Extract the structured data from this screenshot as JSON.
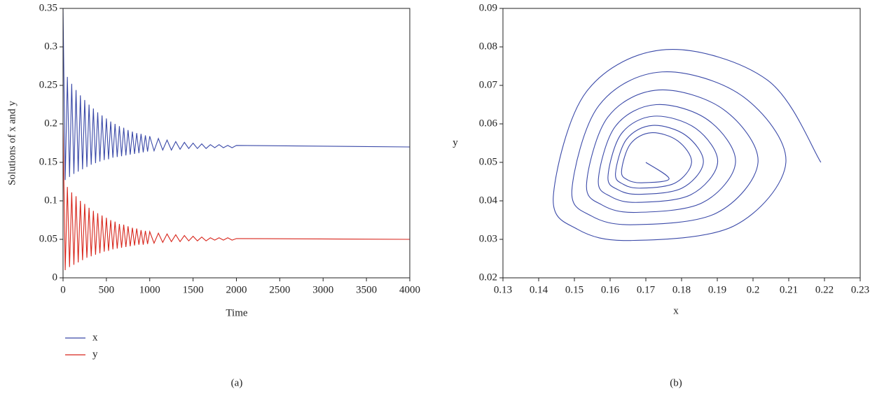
{
  "chart_data": [
    {
      "type": "line",
      "panel_label": "(a)",
      "xlabel": "Time",
      "ylabel": "Solutions of x and y",
      "legend": "below",
      "xlim": [
        0,
        4000
      ],
      "xticks": [
        0,
        500,
        1000,
        1500,
        2000,
        2500,
        3000,
        3500,
        4000
      ],
      "ylim": [
        0,
        0.35
      ],
      "yticks": [
        0,
        0.05,
        0.1,
        0.15,
        0.2,
        0.25,
        0.3,
        0.35
      ],
      "x": [
        0,
        25,
        50,
        75,
        100,
        125,
        150,
        175,
        200,
        225,
        250,
        275,
        300,
        325,
        350,
        375,
        400,
        425,
        450,
        475,
        500,
        525,
        550,
        575,
        600,
        625,
        650,
        675,
        700,
        725,
        750,
        775,
        800,
        825,
        850,
        875,
        900,
        925,
        950,
        975,
        1000,
        1050,
        1100,
        1150,
        1200,
        1250,
        1300,
        1350,
        1400,
        1450,
        1500,
        1550,
        1600,
        1650,
        1700,
        1750,
        1800,
        1850,
        1900,
        1950,
        2000,
        4000
      ],
      "series": [
        {
          "name": "x",
          "color": "#3a49a8",
          "values": [
            0.35,
            0.127,
            0.261,
            0.131,
            0.252,
            0.135,
            0.244,
            0.138,
            0.237,
            0.141,
            0.231,
            0.144,
            0.225,
            0.147,
            0.22,
            0.149,
            0.215,
            0.151,
            0.211,
            0.153,
            0.207,
            0.154,
            0.203,
            0.156,
            0.2,
            0.157,
            0.197,
            0.158,
            0.195,
            0.159,
            0.192,
            0.16,
            0.19,
            0.161,
            0.188,
            0.162,
            0.187,
            0.163,
            0.185,
            0.164,
            0.184,
            0.165,
            0.181,
            0.166,
            0.179,
            0.166,
            0.177,
            0.167,
            0.176,
            0.168,
            0.175,
            0.168,
            0.174,
            0.168,
            0.173,
            0.169,
            0.173,
            0.169,
            0.172,
            0.169,
            0.172,
            0.17
          ]
        },
        {
          "name": "y",
          "color": "#d8261c",
          "values": [
            0.2,
            0.01,
            0.118,
            0.014,
            0.111,
            0.017,
            0.106,
            0.02,
            0.1,
            0.023,
            0.096,
            0.026,
            0.091,
            0.028,
            0.087,
            0.03,
            0.084,
            0.032,
            0.081,
            0.034,
            0.078,
            0.035,
            0.075,
            0.037,
            0.073,
            0.038,
            0.07,
            0.039,
            0.069,
            0.04,
            0.067,
            0.041,
            0.065,
            0.042,
            0.064,
            0.043,
            0.062,
            0.043,
            0.061,
            0.044,
            0.06,
            0.045,
            0.058,
            0.046,
            0.057,
            0.047,
            0.056,
            0.047,
            0.055,
            0.048,
            0.054,
            0.048,
            0.053,
            0.048,
            0.052,
            0.049,
            0.052,
            0.049,
            0.052,
            0.049,
            0.051,
            0.05
          ]
        }
      ]
    },
    {
      "type": "line",
      "panel_label": "(b)",
      "xlabel": "x",
      "ylabel": "y",
      "smooth": true,
      "xlim": [
        0.13,
        0.23
      ],
      "xticks": [
        0.13,
        0.14,
        0.15,
        0.16,
        0.17,
        0.18,
        0.19,
        0.2,
        0.21,
        0.22,
        0.23
      ],
      "ylim": [
        0.02,
        0.09
      ],
      "yticks": [
        0.02,
        0.03,
        0.04,
        0.05,
        0.06,
        0.07,
        0.08,
        0.09
      ],
      "x": [
        0.219,
        0.204,
        0.1757,
        0.1534,
        0.1441,
        0.1509,
        0.1658,
        0.1947,
        0.2092,
        0.1972,
        0.1745,
        0.1568,
        0.1493,
        0.1547,
        0.1666,
        0.1897,
        0.2014,
        0.1918,
        0.1736,
        0.1594,
        0.1534,
        0.1578,
        0.1673,
        0.1858,
        0.1951,
        0.1874,
        0.1729,
        0.1615,
        0.1567,
        0.1602,
        0.1678,
        0.1826,
        0.1901,
        0.184,
        0.1723,
        0.1632,
        0.1594,
        0.1622,
        0.1683,
        0.1801,
        0.1861,
        0.1812,
        0.1719,
        0.1646,
        0.1615,
        0.1637,
        0.1686,
        0.1781,
        0.1828,
        0.1789,
        0.1715,
        0.1657,
        0.1632,
        0.165,
        0.1689,
        0.1765,
        0.17
      ],
      "series": [
        {
          "color": "#3a49a8",
          "values": [
            0.05,
            0.0714,
            0.0793,
            0.0684,
            0.0411,
            0.0326,
            0.0297,
            0.0335,
            0.05,
            0.0671,
            0.0735,
            0.0647,
            0.0428,
            0.0361,
            0.0338,
            0.0368,
            0.05,
            0.0637,
            0.0688,
            0.0618,
            0.0443,
            0.0389,
            0.037,
            0.0395,
            0.05,
            0.061,
            0.065,
            0.0594,
            0.0454,
            0.0411,
            0.0396,
            0.0416,
            0.05,
            0.0588,
            0.062,
            0.0575,
            0.0463,
            0.0429,
            0.0417,
            0.0433,
            0.05,
            0.057,
            0.0596,
            0.056,
            0.0471,
            0.0443,
            0.0433,
            0.0446,
            0.05,
            0.0556,
            0.0577,
            0.0548,
            0.0477,
            0.0454,
            0.0447,
            0.0457,
            0.05
          ]
        }
      ]
    }
  ]
}
